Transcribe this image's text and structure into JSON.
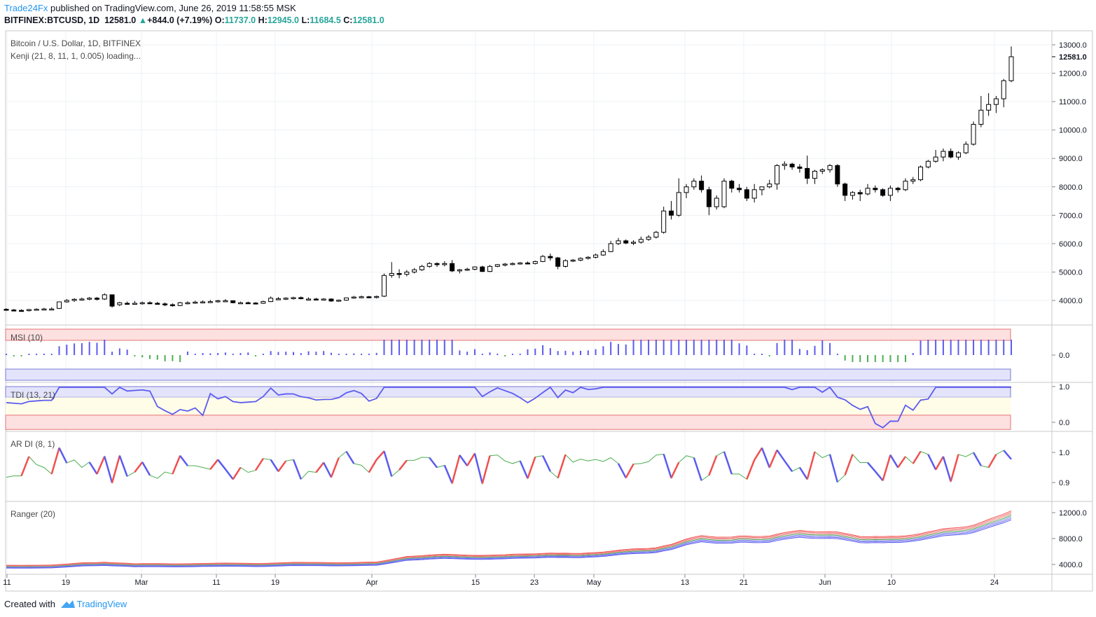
{
  "header": {
    "brand": "Trade24Fx",
    "published": "published on TradingView.com, June 26, 2019 11:58:55 MSK",
    "symbol": "BITFINEX:BTCUSD, 1D",
    "last": "12581.0",
    "change": "+844.0 (+7.19%)",
    "o_label": "O:",
    "o": "11737.0",
    "h_label": "H:",
    "h": "12945.0",
    "l_label": "L:",
    "l": "11684.5",
    "c_label": "C:",
    "c": "12581.0"
  },
  "price_pane": {
    "title": "Bitcoin / U.S. Dollar, 1D, BITFINEX",
    "indicator": "Kenji (21, 8, 11, 1, 0.005) loading...",
    "last_price_label": "12581.0"
  },
  "indicators": {
    "msi": "MSI (10)",
    "tdi": "TDI (13, 21)",
    "ardi": "AR DI (8, 1)",
    "ranger": "Ranger (20)"
  },
  "axes": {
    "price_ticks": [
      "13000.0",
      "12000.0",
      "11000.0",
      "10000.0",
      "9000.0",
      "8000.0",
      "7000.0",
      "6000.0",
      "5000.0",
      "4000.0"
    ],
    "msi_ticks": [
      "0.0"
    ],
    "tdi_ticks": [
      "1.0",
      "0.0"
    ],
    "ardi_ticks": [
      "1.0",
      "0.9"
    ],
    "ranger_ticks": [
      "12000.0",
      "8000.0",
      "4000.0"
    ],
    "time_ticks": [
      "11",
      "19",
      "Mar",
      "11",
      "19",
      "Apr",
      "15",
      "23",
      "May",
      "13",
      "21",
      "Jun",
      "10",
      "24"
    ]
  },
  "footer": {
    "created": "Created with",
    "brand": "TradingView"
  },
  "colors": {
    "up": "#26a69a",
    "brand": "#2196f3",
    "msi_bar": "#5b5bf0",
    "msi_neg": "#4caf50",
    "tdi_line": "#5b5bf0",
    "ardi_line": "#4caf50",
    "ardi_up": "#f0504e",
    "ardi_down": "#5b5bf0"
  },
  "chart_data": {
    "type": "candlestick",
    "x_range": [
      "2019-02-11",
      "2019-06-26"
    ],
    "ylim": [
      3300,
      13200
    ],
    "candles": [
      {
        "o": 3690,
        "h": 3720,
        "l": 3640,
        "c": 3660
      },
      {
        "o": 3665,
        "h": 3700,
        "l": 3630,
        "c": 3650
      },
      {
        "o": 3650,
        "h": 3690,
        "l": 3620,
        "c": 3640
      },
      {
        "o": 3640,
        "h": 3700,
        "l": 3610,
        "c": 3680
      },
      {
        "o": 3680,
        "h": 3720,
        "l": 3650,
        "c": 3690
      },
      {
        "o": 3690,
        "h": 3740,
        "l": 3660,
        "c": 3700
      },
      {
        "o": 3700,
        "h": 3760,
        "l": 3670,
        "c": 3700
      },
      {
        "o": 3720,
        "h": 3950,
        "l": 3700,
        "c": 3950
      },
      {
        "o": 3950,
        "h": 4050,
        "l": 3920,
        "c": 4000
      },
      {
        "o": 4000,
        "h": 4080,
        "l": 3950,
        "c": 4040
      },
      {
        "o": 4040,
        "h": 4100,
        "l": 4000,
        "c": 4050
      },
      {
        "o": 4050,
        "h": 4120,
        "l": 4010,
        "c": 4080
      },
      {
        "o": 4080,
        "h": 4120,
        "l": 4000,
        "c": 4040
      },
      {
        "o": 4050,
        "h": 4250,
        "l": 4020,
        "c": 4200
      },
      {
        "o": 4200,
        "h": 4210,
        "l": 3750,
        "c": 3800
      },
      {
        "o": 3850,
        "h": 3950,
        "l": 3800,
        "c": 3920
      },
      {
        "o": 3900,
        "h": 3960,
        "l": 3850,
        "c": 3880
      },
      {
        "o": 3880,
        "h": 3980,
        "l": 3850,
        "c": 3900
      },
      {
        "o": 3900,
        "h": 3960,
        "l": 3850,
        "c": 3920
      },
      {
        "o": 3920,
        "h": 3970,
        "l": 3870,
        "c": 3900
      },
      {
        "o": 3900,
        "h": 3950,
        "l": 3860,
        "c": 3880
      },
      {
        "o": 3880,
        "h": 3930,
        "l": 3800,
        "c": 3850
      },
      {
        "o": 3850,
        "h": 3900,
        "l": 3780,
        "c": 3820
      },
      {
        "o": 3820,
        "h": 3950,
        "l": 3800,
        "c": 3920
      },
      {
        "o": 3900,
        "h": 3970,
        "l": 3860,
        "c": 3920
      },
      {
        "o": 3920,
        "h": 3990,
        "l": 3880,
        "c": 3940
      },
      {
        "o": 3940,
        "h": 4000,
        "l": 3900,
        "c": 3950
      },
      {
        "o": 3950,
        "h": 4020,
        "l": 3910,
        "c": 3960
      },
      {
        "o": 3960,
        "h": 4020,
        "l": 3920,
        "c": 3990
      },
      {
        "o": 3990,
        "h": 4050,
        "l": 3940,
        "c": 3990
      },
      {
        "o": 3990,
        "h": 4000,
        "l": 3900,
        "c": 3920
      },
      {
        "o": 3920,
        "h": 3960,
        "l": 3880,
        "c": 3920
      },
      {
        "o": 3920,
        "h": 3960,
        "l": 3880,
        "c": 3910
      },
      {
        "o": 3910,
        "h": 3940,
        "l": 3870,
        "c": 3900
      },
      {
        "o": 3900,
        "h": 3990,
        "l": 3880,
        "c": 3960
      },
      {
        "o": 3960,
        "h": 4140,
        "l": 3940,
        "c": 4080
      },
      {
        "o": 4060,
        "h": 4120,
        "l": 4020,
        "c": 4060
      },
      {
        "o": 4060,
        "h": 4110,
        "l": 4020,
        "c": 4080
      },
      {
        "o": 4080,
        "h": 4130,
        "l": 4030,
        "c": 4100
      },
      {
        "o": 4100,
        "h": 4140,
        "l": 4040,
        "c": 4060
      },
      {
        "o": 4050,
        "h": 4110,
        "l": 4010,
        "c": 4050
      },
      {
        "o": 4050,
        "h": 4090,
        "l": 4010,
        "c": 4040
      },
      {
        "o": 4040,
        "h": 4080,
        "l": 4000,
        "c": 4050
      },
      {
        "o": 4050,
        "h": 4070,
        "l": 3950,
        "c": 3980
      },
      {
        "o": 3980,
        "h": 4030,
        "l": 3950,
        "c": 4010
      },
      {
        "o": 4010,
        "h": 4100,
        "l": 3990,
        "c": 4090
      },
      {
        "o": 4090,
        "h": 4160,
        "l": 4060,
        "c": 4120
      },
      {
        "o": 4120,
        "h": 4170,
        "l": 4080,
        "c": 4130
      },
      {
        "o": 4130,
        "h": 4160,
        "l": 4080,
        "c": 4110
      },
      {
        "o": 4110,
        "h": 4170,
        "l": 4070,
        "c": 4140
      },
      {
        "o": 4150,
        "h": 4950,
        "l": 4120,
        "c": 4880
      },
      {
        "o": 4880,
        "h": 5350,
        "l": 4800,
        "c": 4950
      },
      {
        "o": 4950,
        "h": 5100,
        "l": 4780,
        "c": 4920
      },
      {
        "o": 4920,
        "h": 5070,
        "l": 4850,
        "c": 5000
      },
      {
        "o": 5000,
        "h": 5140,
        "l": 4950,
        "c": 5080
      },
      {
        "o": 5080,
        "h": 5250,
        "l": 5040,
        "c": 5200
      },
      {
        "o": 5200,
        "h": 5350,
        "l": 5150,
        "c": 5300
      },
      {
        "o": 5300,
        "h": 5340,
        "l": 5180,
        "c": 5260
      },
      {
        "o": 5260,
        "h": 5380,
        "l": 5200,
        "c": 5300
      },
      {
        "o": 5300,
        "h": 5420,
        "l": 5000,
        "c": 5040
      },
      {
        "o": 5040,
        "h": 5110,
        "l": 4950,
        "c": 5080
      },
      {
        "o": 5080,
        "h": 5150,
        "l": 5040,
        "c": 5100
      },
      {
        "o": 5100,
        "h": 5200,
        "l": 5060,
        "c": 5180
      },
      {
        "o": 5180,
        "h": 5220,
        "l": 5000,
        "c": 5020
      },
      {
        "o": 5020,
        "h": 5250,
        "l": 5000,
        "c": 5200
      },
      {
        "o": 5200,
        "h": 5280,
        "l": 5170,
        "c": 5260
      },
      {
        "o": 5260,
        "h": 5320,
        "l": 5200,
        "c": 5280
      },
      {
        "o": 5280,
        "h": 5340,
        "l": 5240,
        "c": 5300
      },
      {
        "o": 5300,
        "h": 5350,
        "l": 5260,
        "c": 5320
      },
      {
        "o": 5320,
        "h": 5370,
        "l": 5280,
        "c": 5300
      },
      {
        "o": 5300,
        "h": 5400,
        "l": 5270,
        "c": 5370
      },
      {
        "o": 5370,
        "h": 5600,
        "l": 5350,
        "c": 5550
      },
      {
        "o": 5550,
        "h": 5650,
        "l": 5400,
        "c": 5500
      },
      {
        "o": 5500,
        "h": 5530,
        "l": 5100,
        "c": 5200
      },
      {
        "o": 5200,
        "h": 5450,
        "l": 5160,
        "c": 5400
      },
      {
        "o": 5400,
        "h": 5460,
        "l": 5350,
        "c": 5420
      },
      {
        "o": 5420,
        "h": 5520,
        "l": 5380,
        "c": 5480
      },
      {
        "o": 5480,
        "h": 5560,
        "l": 5440,
        "c": 5520
      },
      {
        "o": 5520,
        "h": 5650,
        "l": 5480,
        "c": 5600
      },
      {
        "o": 5600,
        "h": 5800,
        "l": 5570,
        "c": 5720
      },
      {
        "o": 5720,
        "h": 6100,
        "l": 5700,
        "c": 6000
      },
      {
        "o": 6000,
        "h": 6200,
        "l": 5950,
        "c": 6100
      },
      {
        "o": 6100,
        "h": 6150,
        "l": 5980,
        "c": 6020
      },
      {
        "o": 6020,
        "h": 6120,
        "l": 5950,
        "c": 6050
      },
      {
        "o": 6050,
        "h": 6250,
        "l": 6000,
        "c": 6150
      },
      {
        "o": 6150,
        "h": 6300,
        "l": 6100,
        "c": 6230
      },
      {
        "o": 6230,
        "h": 6450,
        "l": 6180,
        "c": 6400
      },
      {
        "o": 6400,
        "h": 7300,
        "l": 6350,
        "c": 7150
      },
      {
        "o": 7150,
        "h": 7500,
        "l": 6850,
        "c": 7000
      },
      {
        "o": 7000,
        "h": 8300,
        "l": 6950,
        "c": 7800
      },
      {
        "o": 7800,
        "h": 8100,
        "l": 7600,
        "c": 8000
      },
      {
        "o": 8000,
        "h": 8300,
        "l": 7900,
        "c": 8200
      },
      {
        "o": 8200,
        "h": 8400,
        "l": 7800,
        "c": 7900
      },
      {
        "o": 7900,
        "h": 8000,
        "l": 7000,
        "c": 7300
      },
      {
        "o": 7300,
        "h": 7700,
        "l": 7200,
        "c": 7600
      },
      {
        "o": 7300,
        "h": 8300,
        "l": 7250,
        "c": 8200
      },
      {
        "o": 8200,
        "h": 8250,
        "l": 7800,
        "c": 7950
      },
      {
        "o": 7950,
        "h": 8100,
        "l": 7800,
        "c": 7900
      },
      {
        "o": 7900,
        "h": 8000,
        "l": 7500,
        "c": 7600
      },
      {
        "o": 7600,
        "h": 8100,
        "l": 7450,
        "c": 7900
      },
      {
        "o": 7900,
        "h": 8000,
        "l": 7700,
        "c": 8000
      },
      {
        "o": 8000,
        "h": 8250,
        "l": 7950,
        "c": 8100
      },
      {
        "o": 8100,
        "h": 8800,
        "l": 7900,
        "c": 8750
      },
      {
        "o": 8750,
        "h": 8900,
        "l": 8600,
        "c": 8800
      },
      {
        "o": 8800,
        "h": 8850,
        "l": 8600,
        "c": 8700
      },
      {
        "o": 8700,
        "h": 8800,
        "l": 8500,
        "c": 8650
      },
      {
        "o": 8650,
        "h": 9100,
        "l": 8100,
        "c": 8300
      },
      {
        "o": 8300,
        "h": 8600,
        "l": 8100,
        "c": 8550
      },
      {
        "o": 8550,
        "h": 8650,
        "l": 8450,
        "c": 8600
      },
      {
        "o": 8600,
        "h": 8800,
        "l": 8500,
        "c": 8750
      },
      {
        "o": 8750,
        "h": 8800,
        "l": 8000,
        "c": 8100
      },
      {
        "o": 8100,
        "h": 8150,
        "l": 7500,
        "c": 7700
      },
      {
        "o": 7700,
        "h": 7850,
        "l": 7550,
        "c": 7800
      },
      {
        "o": 7800,
        "h": 7900,
        "l": 7500,
        "c": 7750
      },
      {
        "o": 7750,
        "h": 8100,
        "l": 7700,
        "c": 7950
      },
      {
        "o": 7950,
        "h": 8050,
        "l": 7800,
        "c": 7900
      },
      {
        "o": 7900,
        "h": 7950,
        "l": 7650,
        "c": 7700
      },
      {
        "o": 7700,
        "h": 8050,
        "l": 7500,
        "c": 7950
      },
      {
        "o": 7950,
        "h": 8000,
        "l": 7800,
        "c": 7900
      },
      {
        "o": 7900,
        "h": 8300,
        "l": 7850,
        "c": 8200
      },
      {
        "o": 8200,
        "h": 8350,
        "l": 8100,
        "c": 8250
      },
      {
        "o": 8250,
        "h": 8750,
        "l": 8200,
        "c": 8700
      },
      {
        "o": 8700,
        "h": 8950,
        "l": 8650,
        "c": 8900
      },
      {
        "o": 8900,
        "h": 9300,
        "l": 8850,
        "c": 9050
      },
      {
        "o": 9050,
        "h": 9350,
        "l": 8900,
        "c": 9250
      },
      {
        "o": 9250,
        "h": 9350,
        "l": 9000,
        "c": 9050
      },
      {
        "o": 9050,
        "h": 9250,
        "l": 8950,
        "c": 9200
      },
      {
        "o": 9200,
        "h": 9600,
        "l": 9150,
        "c": 9500
      },
      {
        "o": 9500,
        "h": 10300,
        "l": 9450,
        "c": 10200
      },
      {
        "o": 10200,
        "h": 11200,
        "l": 10100,
        "c": 10700
      },
      {
        "o": 10700,
        "h": 11300,
        "l": 10500,
        "c": 10900
      },
      {
        "o": 10900,
        "h": 11200,
        "l": 10600,
        "c": 11100
      },
      {
        "o": 11100,
        "h": 11800,
        "l": 10800,
        "c": 11737
      },
      {
        "o": 11737,
        "h": 12945,
        "l": 11684,
        "c": 12581
      }
    ]
  }
}
